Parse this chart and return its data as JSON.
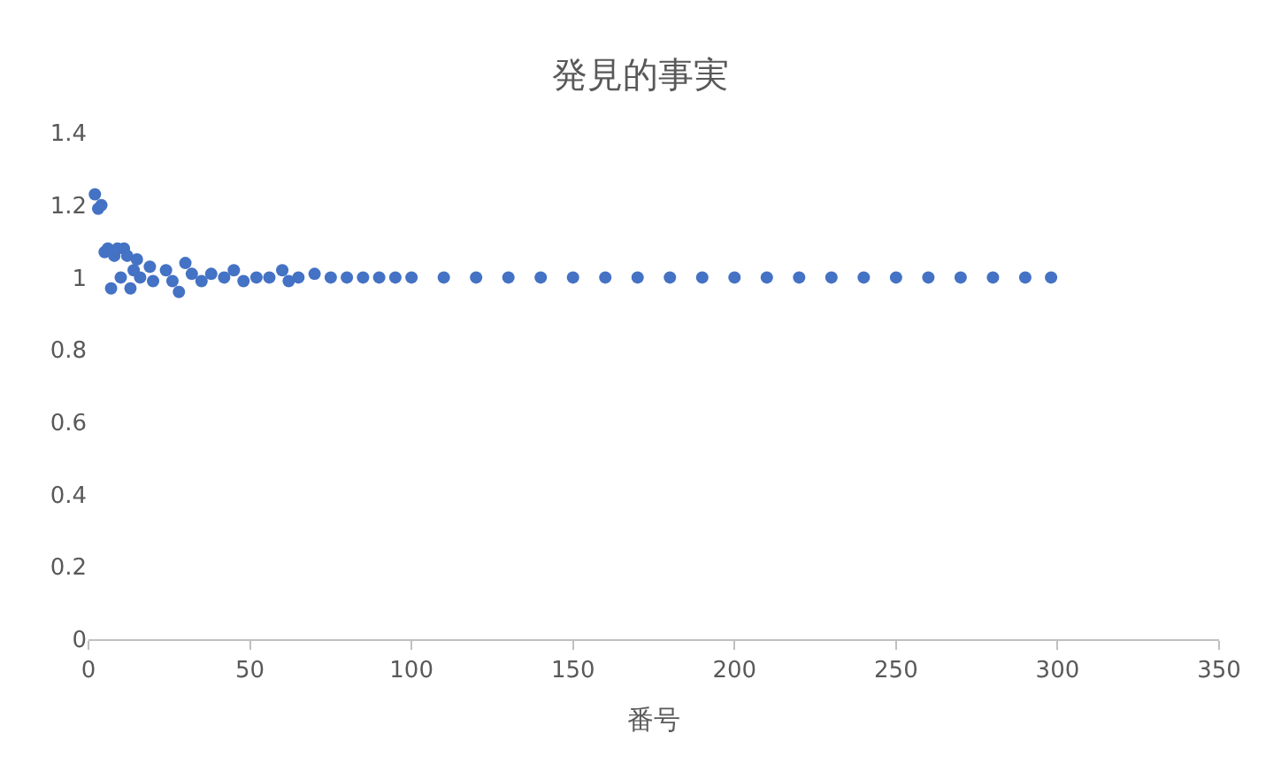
{
  "chart_data": {
    "type": "scatter",
    "title": "発見的事実",
    "xlabel": "番号",
    "x": [
      2,
      3,
      4,
      5,
      6,
      7,
      8,
      9,
      10,
      11,
      12,
      13,
      14,
      15,
      16,
      19,
      20,
      24,
      26,
      28,
      30,
      32,
      35,
      38,
      42,
      45,
      48,
      52,
      56,
      60,
      62,
      65,
      70,
      75,
      80,
      85,
      90,
      95,
      100,
      110,
      120,
      130,
      140,
      150,
      160,
      170,
      180,
      190,
      200,
      210,
      220,
      230,
      240,
      250,
      260,
      270,
      280,
      290,
      298
    ],
    "series": [
      {
        "color": "#4472c4",
        "values": [
          1.23,
          1.19,
          1.2,
          1.07,
          1.08,
          0.97,
          1.06,
          1.08,
          1.0,
          1.08,
          1.06,
          0.97,
          1.02,
          1.05,
          1.0,
          1.03,
          0.99,
          1.02,
          0.99,
          0.96,
          1.04,
          1.01,
          0.99,
          1.01,
          1.0,
          1.02,
          0.99,
          1.0,
          1.0,
          1.02,
          0.99,
          1.0,
          1.01,
          1.0,
          1.0,
          1.0,
          1.0,
          1.0,
          1.0,
          1.0,
          1.0,
          1.0,
          1.0,
          1.0,
          1.0,
          1.0,
          1.0,
          1.0,
          1.0,
          1.0,
          1.0,
          1.0,
          1.0,
          1.0,
          1.0,
          1.0,
          1.0,
          1.0,
          1.0
        ]
      }
    ],
    "xlim": [
      0,
      350
    ],
    "xticks": [
      0,
      50,
      100,
      150,
      200,
      250,
      300,
      350
    ],
    "ylim": [
      0,
      1.4
    ],
    "yticks": [
      0,
      0.2,
      0.4,
      0.6,
      0.8,
      1,
      1.2,
      1.4
    ],
    "marker": "circle"
  }
}
